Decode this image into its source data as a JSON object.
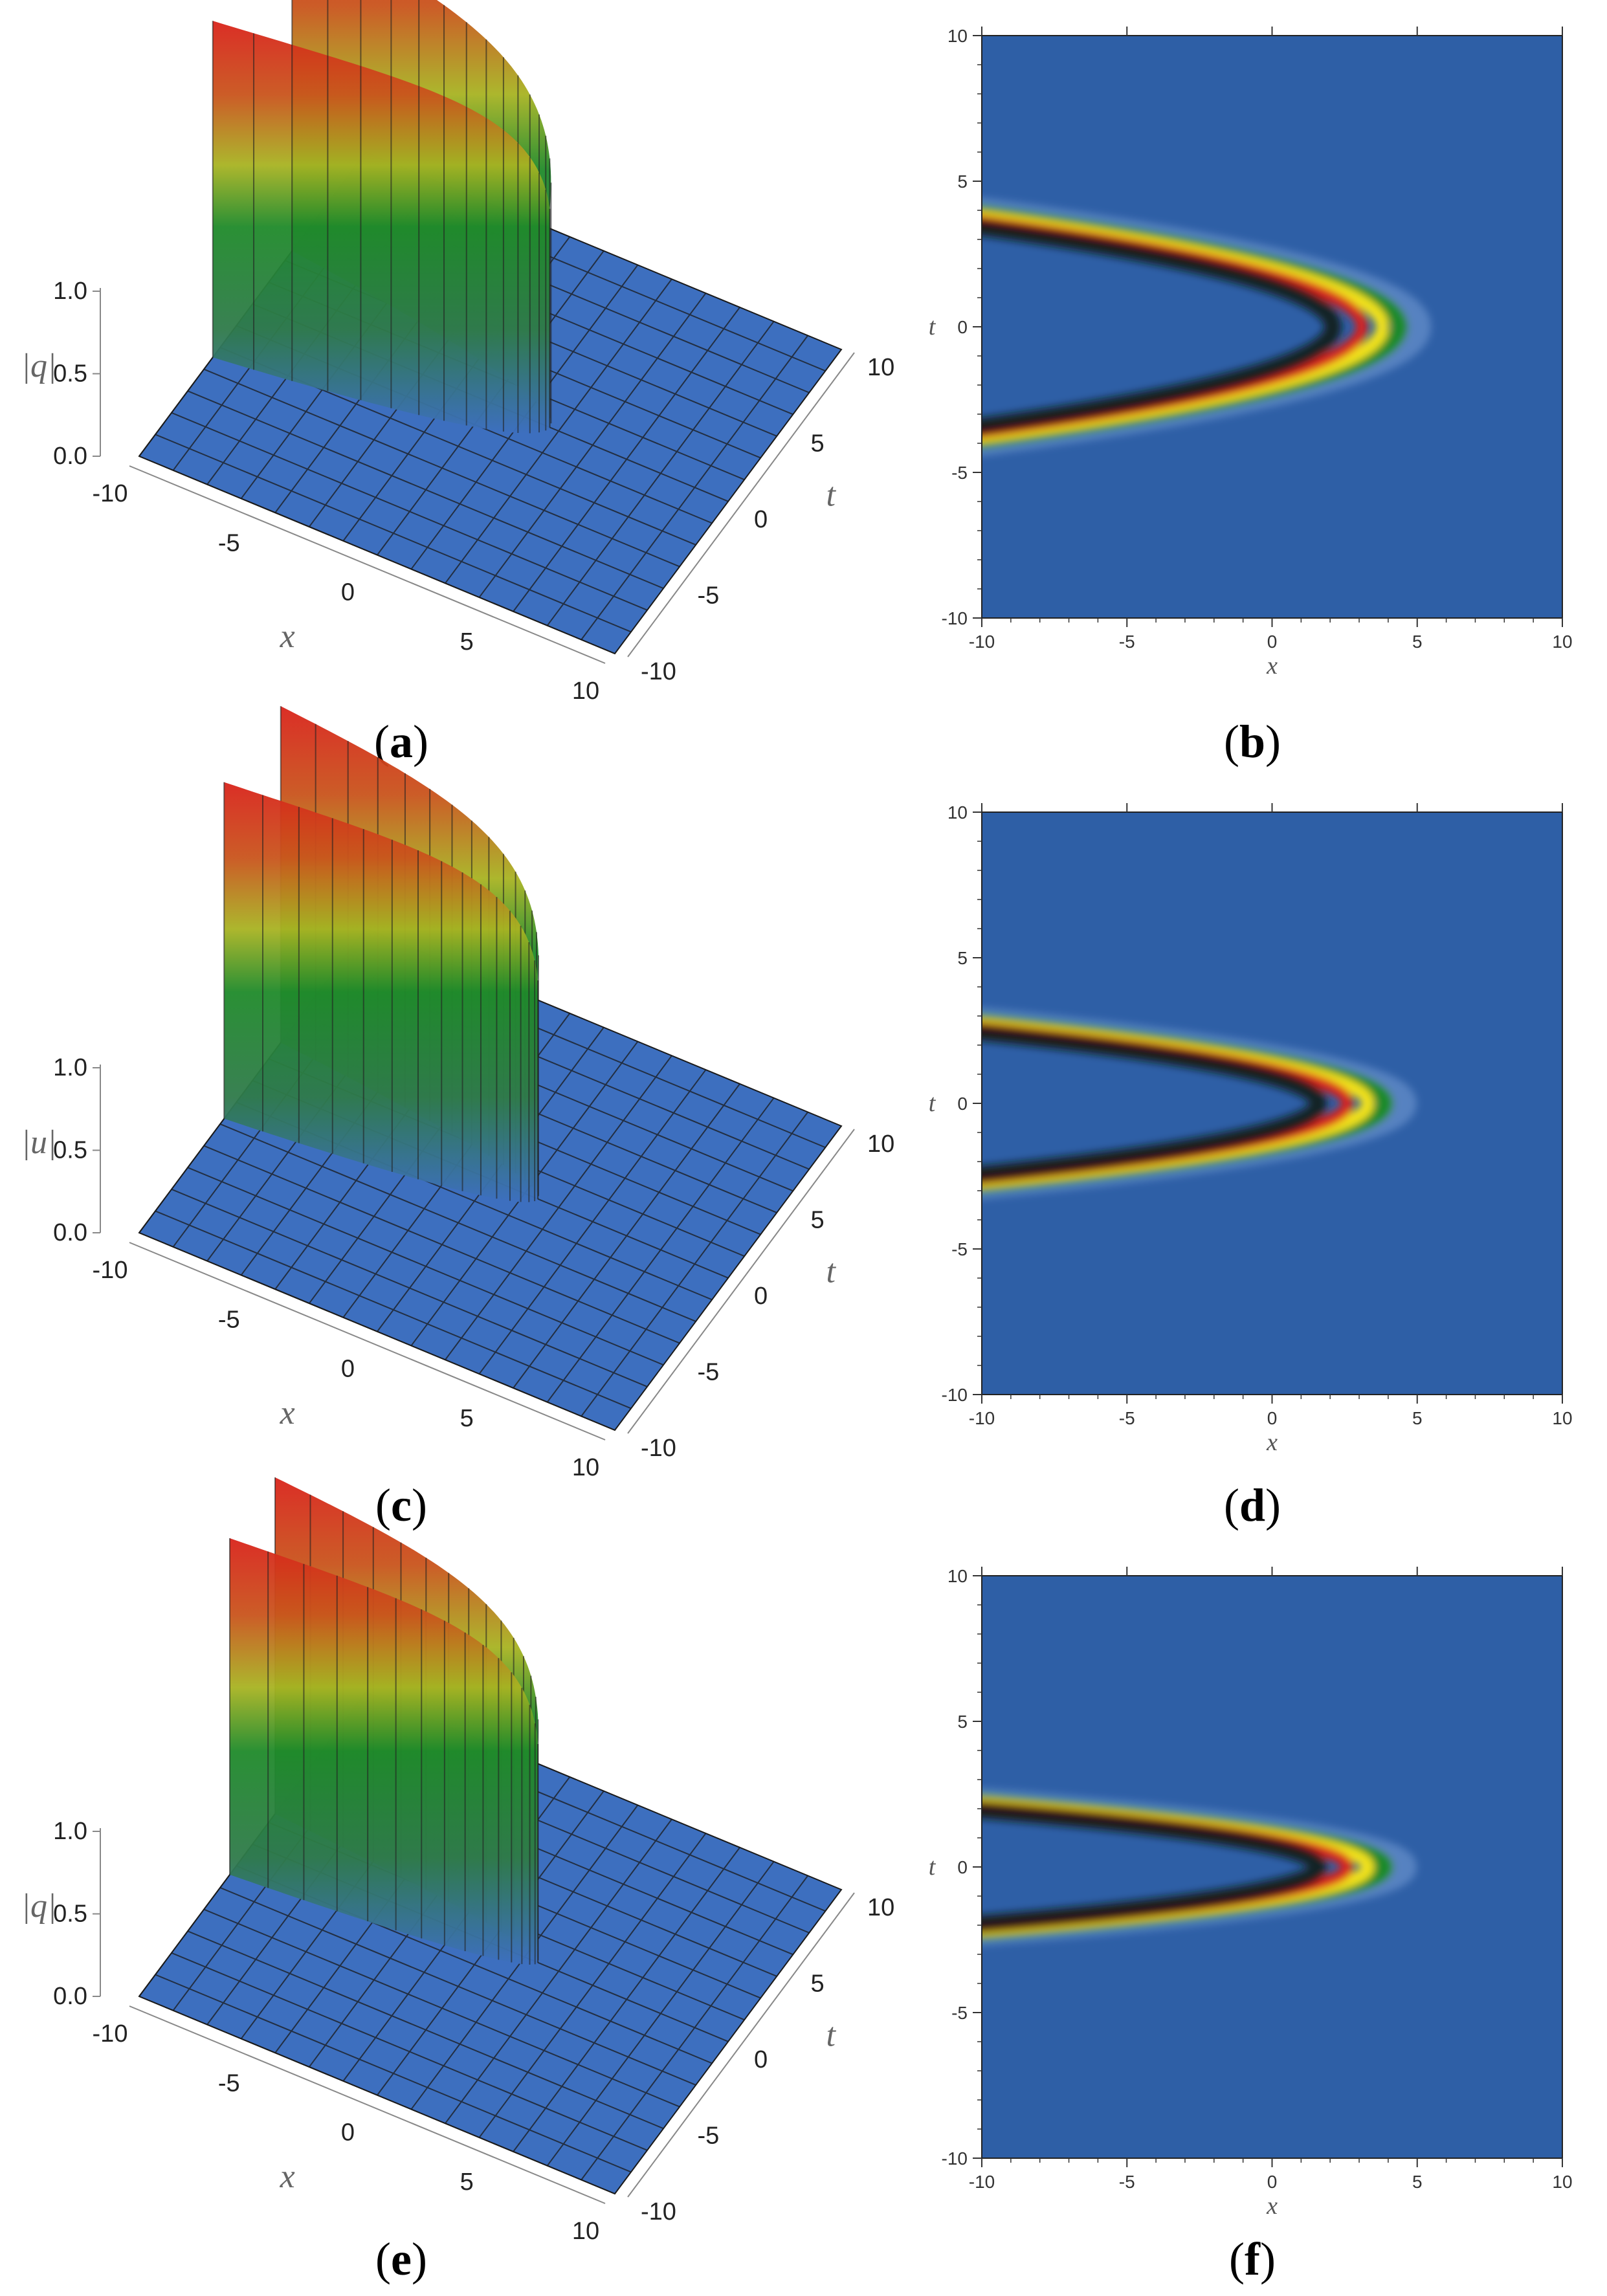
{
  "figure": {
    "panels": [
      {
        "id": "a",
        "kind": "surface3d",
        "caption_letter": "a",
        "zlabel": "|q|",
        "xlabel": "x",
        "ylabel": "t"
      },
      {
        "id": "b",
        "kind": "density",
        "caption_letter": "b",
        "xlabel": "x",
        "ylabel": "t"
      },
      {
        "id": "c",
        "kind": "surface3d",
        "caption_letter": "c",
        "zlabel": "|u|",
        "xlabel": "x",
        "ylabel": "t"
      },
      {
        "id": "d",
        "kind": "density",
        "caption_letter": "d",
        "xlabel": "x",
        "ylabel": "t"
      },
      {
        "id": "e",
        "kind": "surface3d",
        "caption_letter": "e",
        "zlabel": "|q|",
        "xlabel": "x",
        "ylabel": "t"
      },
      {
        "id": "f",
        "kind": "density",
        "caption_letter": "f",
        "xlabel": "x",
        "ylabel": "t"
      }
    ],
    "colors": {
      "background": "#2e5fa6",
      "surface_base": "#3d6fbf",
      "peak_red": "#d9231b",
      "ridge_yellow": "#f2e21a",
      "ridge_green": "#1f8a2a",
      "ridge_dark": "#0a1410",
      "mesh_line": "#1a1a1a"
    }
  },
  "chart_data": [
    {
      "panel": "a",
      "type": "surface3d",
      "title": "",
      "xlabel": "x",
      "ylabel": "t",
      "zlabel": "|q|",
      "xlim": [
        -10,
        10
      ],
      "ylim": [
        -10,
        10
      ],
      "zlim": [
        0,
        1.0
      ],
      "x_ticks": [
        "-10",
        "-5",
        "0",
        "5",
        "10"
      ],
      "y_ticks": [
        "-10",
        "-5",
        "0",
        "5",
        "10"
      ],
      "z_ticks": [
        "0.0",
        "0.5",
        "1.0"
      ],
      "wave": {
        "tip_x": 2.5,
        "arm_t_at_x_min": 3.5
      }
    },
    {
      "panel": "b",
      "type": "heatmap",
      "title": "",
      "xlabel": "x",
      "ylabel": "t",
      "xlim": [
        -10,
        10
      ],
      "ylim": [
        -10,
        10
      ],
      "x_ticks": [
        "-10",
        "-5",
        "0",
        "5",
        "10"
      ],
      "y_ticks": [
        "-10",
        "-5",
        "0",
        "5",
        "10"
      ],
      "wave": {
        "tip_x": 2.5,
        "arm_t_at_x_min": 3.5
      }
    },
    {
      "panel": "c",
      "type": "surface3d",
      "title": "",
      "xlabel": "x",
      "ylabel": "t",
      "zlabel": "|u|",
      "xlim": [
        -10,
        10
      ],
      "ylim": [
        -10,
        10
      ],
      "zlim": [
        0,
        1.0
      ],
      "x_ticks": [
        "-10",
        "-5",
        "0",
        "5",
        "10"
      ],
      "y_ticks": [
        "-10",
        "-5",
        "0",
        "5",
        "10"
      ],
      "z_ticks": [
        "0.0",
        "0.5",
        "1.0"
      ],
      "wave": {
        "tip_x": 2.0,
        "arm_t_at_x_min": 2.5
      }
    },
    {
      "panel": "d",
      "type": "heatmap",
      "title": "",
      "xlabel": "x",
      "ylabel": "t",
      "xlim": [
        -10,
        10
      ],
      "ylim": [
        -10,
        10
      ],
      "x_ticks": [
        "-10",
        "-5",
        "0",
        "5",
        "10"
      ],
      "y_ticks": [
        "-10",
        "-5",
        "0",
        "5",
        "10"
      ],
      "wave": {
        "tip_x": 2.0,
        "arm_t_at_x_min": 2.5
      }
    },
    {
      "panel": "e",
      "type": "surface3d",
      "title": "",
      "xlabel": "x",
      "ylabel": "t",
      "zlabel": "|q|",
      "xlim": [
        -10,
        10
      ],
      "ylim": [
        -10,
        10
      ],
      "zlim": [
        0,
        1.0
      ],
      "x_ticks": [
        "-10",
        "-5",
        "0",
        "5",
        "10"
      ],
      "y_ticks": [
        "-10",
        "-5",
        "0",
        "5",
        "10"
      ],
      "z_ticks": [
        "0.0",
        "0.5",
        "1.0"
      ],
      "wave": {
        "tip_x": 2.0,
        "arm_t_at_x_min": 2.0
      }
    },
    {
      "panel": "f",
      "type": "heatmap",
      "title": "",
      "xlabel": "x",
      "ylabel": "t",
      "xlim": [
        -10,
        10
      ],
      "ylim": [
        -10,
        10
      ],
      "x_ticks": [
        "-10",
        "-5",
        "0",
        "5",
        "10"
      ],
      "y_ticks": [
        "-10",
        "-5",
        "0",
        "5",
        "10"
      ],
      "wave": {
        "tip_x": 2.0,
        "arm_t_at_x_min": 2.0
      }
    }
  ]
}
